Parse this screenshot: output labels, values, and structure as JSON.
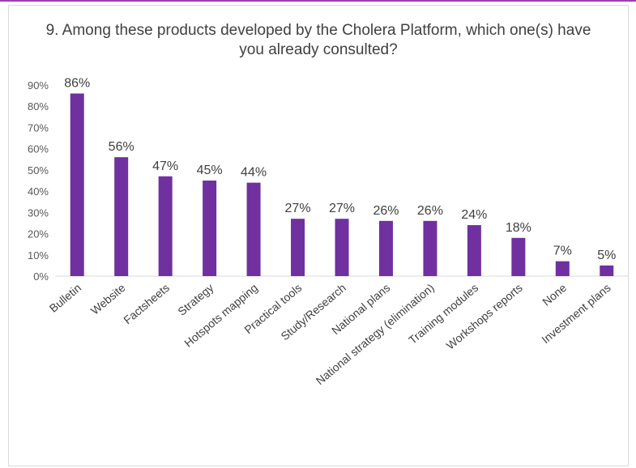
{
  "chart_data": {
    "type": "bar",
    "title": "9. Among these products developed by the Cholera Platform, which one(s) have you already consulted?",
    "categories": [
      "Bulletin",
      "Website",
      "Factsheets",
      "Strategy",
      "Hotspots mapping",
      "Practical tools",
      "Study/Research",
      "National plans",
      "National strategy (elimination)",
      "Training modules",
      "Workshops reports",
      "None",
      "Investment plans"
    ],
    "values": [
      86,
      56,
      47,
      45,
      44,
      27,
      27,
      26,
      26,
      24,
      18,
      7,
      5
    ],
    "data_labels": [
      "86%",
      "56%",
      "47%",
      "45%",
      "44%",
      "27%",
      "27%",
      "26%",
      "26%",
      "24%",
      "18%",
      "7%",
      "5%"
    ],
    "y_ticks": [
      "0%",
      "10%",
      "20%",
      "30%",
      "40%",
      "50%",
      "60%",
      "70%",
      "80%",
      "90%"
    ],
    "ylim": [
      0,
      90
    ],
    "xlabel": "",
    "ylabel": "",
    "grid": false,
    "bar_color": "#7030a0",
    "accent_color": "#a23cb4"
  }
}
